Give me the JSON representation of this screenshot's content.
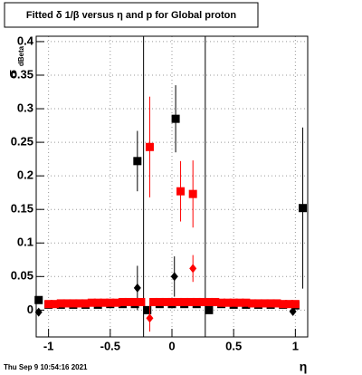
{
  "chart_data": {
    "type": "scatter",
    "title": "Fitted δ 1/β versus η and p for Global proton",
    "y_label": "σ",
    "y_label_sub": "dBeta",
    "x_label": "η",
    "timestamp": "Thu Sep  9 10:54:16 2021",
    "xlim": [
      -1.1,
      1.1
    ],
    "ylim": [
      -0.04,
      0.408
    ],
    "xticks": [
      -1,
      -0.5,
      0,
      0.5,
      1
    ],
    "yticks": [
      0,
      0.05,
      0.1,
      0.15,
      0.2,
      0.25,
      0.3,
      0.35,
      0.4
    ],
    "grid": true,
    "vlines": [
      -0.23,
      0.27
    ],
    "series": [
      {
        "color": "#000000",
        "marker": "square",
        "x": [
          -1.08,
          -1.0,
          -0.9,
          -0.8,
          -0.7,
          -0.6,
          -0.5,
          -0.4,
          -0.3,
          -0.28,
          -0.2,
          -0.1,
          0.0,
          0.03,
          0.1,
          0.2,
          0.3,
          0.4,
          0.5,
          0.6,
          0.7,
          0.8,
          0.9,
          1.0,
          1.06
        ],
        "values": [
          0.015,
          0.008,
          0.008,
          0.008,
          0.008,
          0.008,
          0.009,
          0.009,
          0.009,
          0.222,
          0.0,
          0.009,
          0.009,
          0.285,
          0.009,
          0.009,
          0.0,
          0.009,
          0.008,
          0.008,
          0.008,
          0.008,
          0.008,
          0.007,
          0.152
        ],
        "errors": [
          0.004,
          0.002,
          0.002,
          0.002,
          0.002,
          0.002,
          0.002,
          0.002,
          0.002,
          0.045,
          0.004,
          0.002,
          0.002,
          0.05,
          0.002,
          0.002,
          0.004,
          0.002,
          0.002,
          0.002,
          0.002,
          0.002,
          0.002,
          0.004,
          0.12
        ]
      },
      {
        "color": "#000000",
        "marker": "diamond",
        "x": [
          -1.08,
          -0.28,
          0.02,
          0.98
        ],
        "values": [
          -0.003,
          0.033,
          0.05,
          -0.002
        ],
        "errors": [
          0.003,
          0.033,
          0.03,
          0.003
        ]
      },
      {
        "color": "#ff0000",
        "marker": "square",
        "x": [
          -1.0,
          -0.95,
          -0.9,
          -0.85,
          -0.8,
          -0.75,
          -0.7,
          -0.65,
          -0.6,
          -0.55,
          -0.5,
          -0.45,
          -0.4,
          -0.35,
          -0.3,
          -0.25,
          -0.18,
          -0.15,
          -0.1,
          -0.05,
          0.0,
          0.05,
          0.07,
          0.1,
          0.15,
          0.17,
          0.2,
          0.25,
          0.3,
          0.35,
          0.4,
          0.45,
          0.5,
          0.55,
          0.6,
          0.65,
          0.7,
          0.75,
          0.8,
          0.85,
          0.9,
          0.95,
          1.0
        ],
        "values": [
          0.009,
          0.009,
          0.01,
          0.01,
          0.01,
          0.01,
          0.01,
          0.011,
          0.011,
          0.011,
          0.011,
          0.011,
          0.012,
          0.012,
          0.012,
          0.012,
          0.243,
          0.012,
          0.012,
          0.012,
          0.012,
          0.012,
          0.177,
          0.012,
          0.012,
          0.173,
          0.012,
          0.012,
          0.012,
          0.012,
          0.011,
          0.011,
          0.011,
          0.011,
          0.011,
          0.01,
          0.01,
          0.01,
          0.01,
          0.01,
          0.009,
          0.009,
          0.009
        ],
        "errors": [
          0.003,
          0.003,
          0.003,
          0.003,
          0.003,
          0.003,
          0.003,
          0.003,
          0.003,
          0.003,
          0.003,
          0.003,
          0.003,
          0.003,
          0.003,
          0.003,
          0.075,
          0.003,
          0.003,
          0.003,
          0.003,
          0.003,
          0.045,
          0.003,
          0.003,
          0.05,
          0.003,
          0.003,
          0.003,
          0.003,
          0.003,
          0.003,
          0.003,
          0.003,
          0.003,
          0.003,
          0.003,
          0.003,
          0.003,
          0.003,
          0.003,
          0.003,
          0.003
        ]
      },
      {
        "color": "#ff0000",
        "marker": "diamond",
        "x": [
          -0.18,
          0.17
        ],
        "values": [
          -0.012,
          0.062
        ],
        "errors": [
          0.02,
          0.02
        ]
      }
    ]
  }
}
